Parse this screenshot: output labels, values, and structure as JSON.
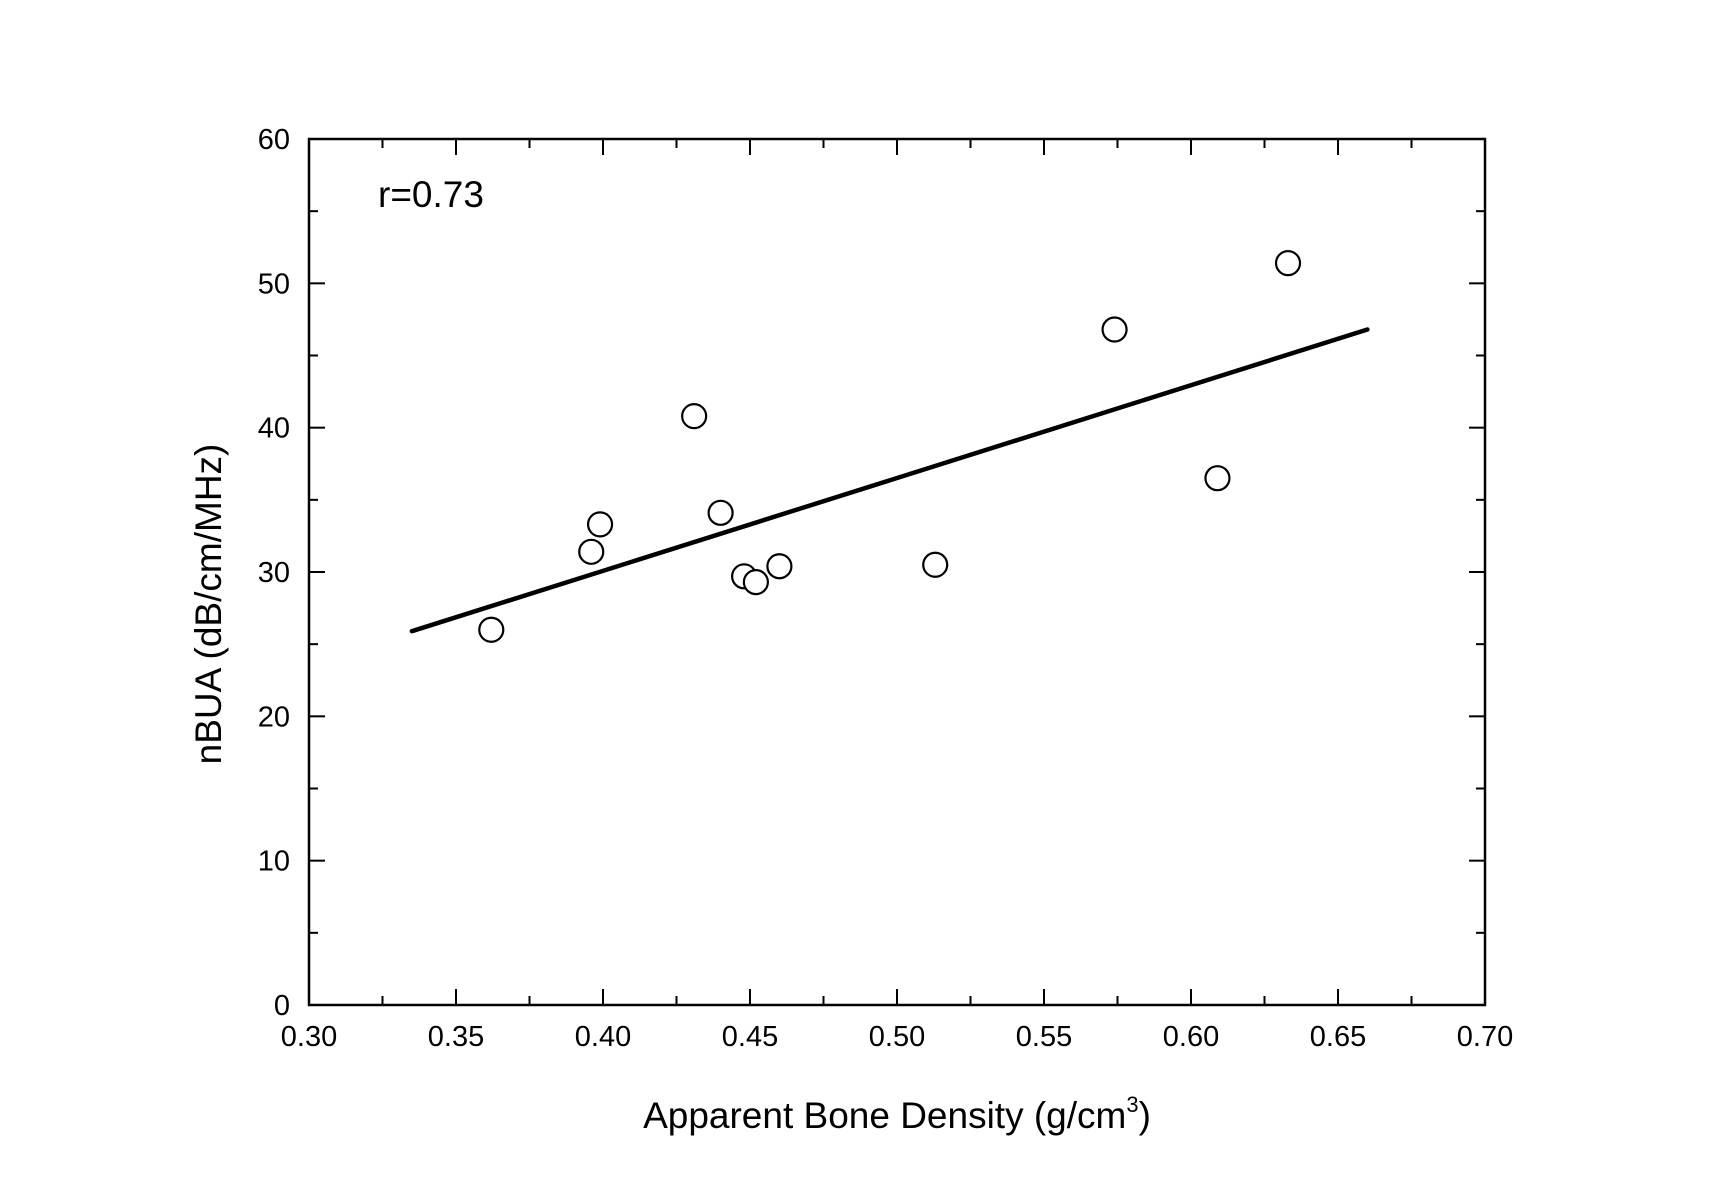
{
  "chart_data": {
    "type": "scatter",
    "title": "",
    "xlabel": "Apparent Bone Density (g/cm",
    "xlabel_superscript": "3",
    "xlabel_suffix": ")",
    "ylabel": "nBUA (dB/cm/MHz)",
    "xlim": [
      0.3,
      0.7
    ],
    "ylim": [
      0,
      60
    ],
    "x_ticks": [
      "0.30",
      "0.35",
      "0.40",
      "0.45",
      "0.50",
      "0.55",
      "0.60",
      "0.65",
      "0.70"
    ],
    "y_ticks": [
      "0",
      "10",
      "20",
      "30",
      "40",
      "50",
      "60"
    ],
    "grid": false,
    "annotation": "r=0.73",
    "series": [
      {
        "marker": "open-circle",
        "points": [
          {
            "x": 0.362,
            "y": 26.0
          },
          {
            "x": 0.396,
            "y": 31.4
          },
          {
            "x": 0.399,
            "y": 33.3
          },
          {
            "x": 0.431,
            "y": 40.8
          },
          {
            "x": 0.44,
            "y": 34.1
          },
          {
            "x": 0.448,
            "y": 29.7
          },
          {
            "x": 0.452,
            "y": 29.3
          },
          {
            "x": 0.46,
            "y": 30.4
          },
          {
            "x": 0.513,
            "y": 30.5
          },
          {
            "x": 0.574,
            "y": 46.8
          },
          {
            "x": 0.609,
            "y": 36.5
          },
          {
            "x": 0.633,
            "y": 51.4
          }
        ]
      }
    ],
    "fit_line": {
      "x": [
        0.335,
        0.66
      ],
      "y": [
        25.9,
        46.8
      ]
    },
    "colors": {
      "foreground": "#000000",
      "background": "#ffffff"
    }
  }
}
